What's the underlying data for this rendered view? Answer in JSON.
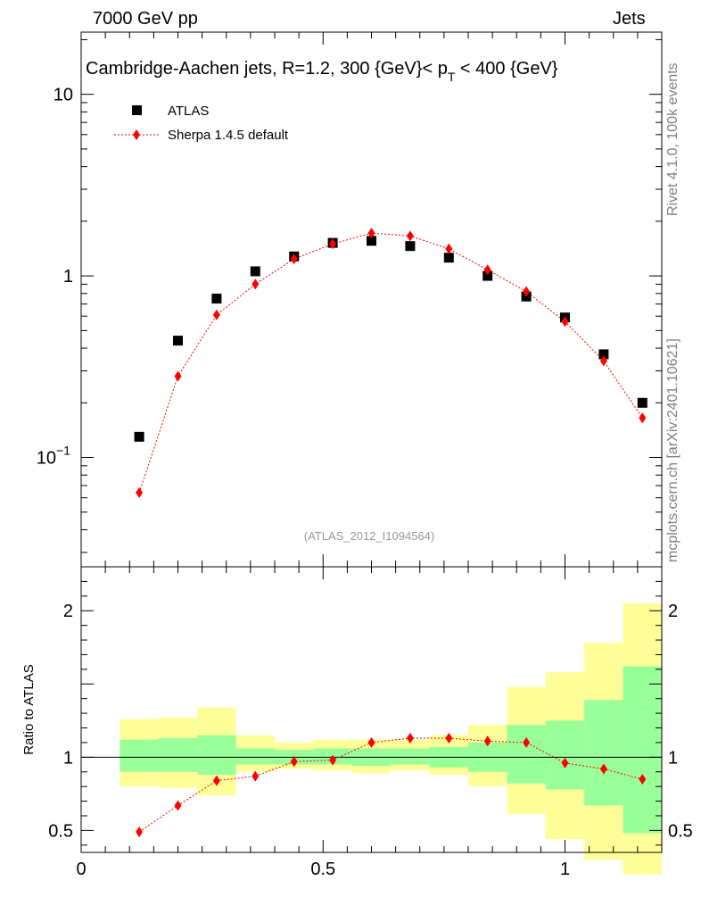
{
  "header": {
    "energy_label": "7000 GeV pp",
    "process_label": "Jets"
  },
  "side_labels": {
    "rivet": "Rivet 4.1.0,  100k events",
    "mcplots": "mcplots.cern.ch [arXiv:2401.10621]"
  },
  "chart_data": [
    {
      "type": "scatter",
      "panel": "main",
      "title": "Cambridge-Aachen jets, R=1.2,  300 {GeV}< p_T < 400 {GeV}",
      "title_parts": {
        "main": "Cambridge-Aachen jets, R=1.2,  300 {GeV}< p",
        "sub": "T",
        "tail": " < 400 {GeV}"
      },
      "analysis_label": "(ATLAS_2012_I1094564)",
      "yscale": "log",
      "ylim": [
        0.025,
        22
      ],
      "xlim": [
        0,
        1.2
      ],
      "ytick_labels": [
        {
          "value": 10,
          "label": "10"
        },
        {
          "value": 1,
          "label": "1"
        },
        {
          "value": 0.1,
          "label": "10",
          "exp": "−1"
        }
      ],
      "legend": {
        "position": "top-left",
        "entries": [
          "ATLAS",
          "Sherpa 1.4.5 default"
        ]
      },
      "series": [
        {
          "name": "ATLAS",
          "marker": "square",
          "color": "#000000",
          "x": [
            0.12,
            0.2,
            0.28,
            0.36,
            0.44,
            0.52,
            0.6,
            0.68,
            0.76,
            0.84,
            0.92,
            1.0,
            1.08,
            1.16
          ],
          "y": [
            0.13,
            0.44,
            0.75,
            1.06,
            1.28,
            1.52,
            1.56,
            1.46,
            1.26,
            1.0,
            0.77,
            0.59,
            0.37,
            0.2
          ]
        },
        {
          "name": "Sherpa 1.4.5 default",
          "marker": "diamond",
          "line": "dotted",
          "color": "#ff0000",
          "x": [
            0.12,
            0.2,
            0.28,
            0.36,
            0.44,
            0.52,
            0.6,
            0.68,
            0.76,
            0.84,
            0.92,
            1.0,
            1.08,
            1.16
          ],
          "y": [
            0.064,
            0.28,
            0.61,
            0.9,
            1.24,
            1.5,
            1.72,
            1.66,
            1.41,
            1.08,
            0.82,
            0.56,
            0.34,
            0.165
          ]
        }
      ]
    },
    {
      "type": "band+line",
      "panel": "ratio",
      "ylabel": "Ratio to ATLAS",
      "ylim": [
        0.35,
        2.3
      ],
      "xlim": [
        0,
        1.2
      ],
      "ytick_labels": [
        {
          "value": 2,
          "label": "2"
        },
        {
          "value": 1,
          "label": "1"
        },
        {
          "value": 0.5,
          "label": "0.5"
        }
      ],
      "xtick_labels": [
        {
          "value": 0,
          "label": "0"
        },
        {
          "value": 0.5,
          "label": "0.5"
        },
        {
          "value": 1,
          "label": "1"
        }
      ],
      "bins": [
        {
          "lo": 0.08,
          "hi": 0.16,
          "stat": [
            0.9,
            1.12
          ],
          "total": [
            0.8,
            1.26
          ]
        },
        {
          "lo": 0.16,
          "hi": 0.24,
          "stat": [
            0.9,
            1.13
          ],
          "total": [
            0.79,
            1.27
          ]
        },
        {
          "lo": 0.24,
          "hi": 0.32,
          "stat": [
            0.88,
            1.15
          ],
          "total": [
            0.74,
            1.34
          ]
        },
        {
          "lo": 0.32,
          "hi": 0.4,
          "stat": [
            0.95,
            1.06
          ],
          "total": [
            0.9,
            1.15
          ]
        },
        {
          "lo": 0.4,
          "hi": 0.48,
          "stat": [
            0.95,
            1.05
          ],
          "total": [
            0.92,
            1.1
          ]
        },
        {
          "lo": 0.48,
          "hi": 0.56,
          "stat": [
            0.95,
            1.06
          ],
          "total": [
            0.91,
            1.12
          ]
        },
        {
          "lo": 0.56,
          "hi": 0.64,
          "stat": [
            0.94,
            1.06
          ],
          "total": [
            0.89,
            1.12
          ]
        },
        {
          "lo": 0.64,
          "hi": 0.72,
          "stat": [
            0.95,
            1.06
          ],
          "total": [
            0.91,
            1.12
          ]
        },
        {
          "lo": 0.72,
          "hi": 0.8,
          "stat": [
            0.93,
            1.07
          ],
          "total": [
            0.88,
            1.15
          ]
        },
        {
          "lo": 0.8,
          "hi": 0.88,
          "stat": [
            0.9,
            1.1
          ],
          "total": [
            0.8,
            1.22
          ]
        },
        {
          "lo": 0.88,
          "hi": 0.96,
          "stat": [
            0.82,
            1.22
          ],
          "total": [
            0.61,
            1.48
          ]
        },
        {
          "lo": 0.96,
          "hi": 1.04,
          "stat": [
            0.78,
            1.25
          ],
          "total": [
            0.44,
            1.58
          ]
        },
        {
          "lo": 1.04,
          "hi": 1.12,
          "stat": [
            0.67,
            1.39
          ],
          "total": [
            0.3,
            1.78
          ]
        },
        {
          "lo": 1.12,
          "hi": 1.2,
          "stat": [
            0.48,
            1.62
          ],
          "total": [
            0.2,
            2.05
          ]
        }
      ],
      "series": [
        {
          "name": "Sherpa 1.4.5 default / ATLAS",
          "marker": "diamond",
          "line": "dotted",
          "color": "#ff0000",
          "x": [
            0.12,
            0.2,
            0.28,
            0.36,
            0.44,
            0.52,
            0.6,
            0.68,
            0.76,
            0.84,
            0.92,
            1.0,
            1.08,
            1.16
          ],
          "y": [
            0.49,
            0.67,
            0.84,
            0.87,
            0.97,
            0.98,
            1.1,
            1.13,
            1.13,
            1.11,
            1.1,
            0.96,
            0.92,
            0.85
          ],
          "yerr": [
            0.025,
            0.01,
            0.01,
            0.01,
            0.01,
            0.01,
            0.01,
            0.01,
            0.01,
            0.01,
            0.01,
            0.01,
            0.01,
            0.01
          ]
        }
      ]
    }
  ],
  "colors": {
    "stat_band": "#99ff99",
    "total_band": "#ffff99",
    "reference_line": "#000000",
    "sherpa": "#ff0000",
    "atlas": "#000000",
    "analysis_label": "#999999"
  }
}
